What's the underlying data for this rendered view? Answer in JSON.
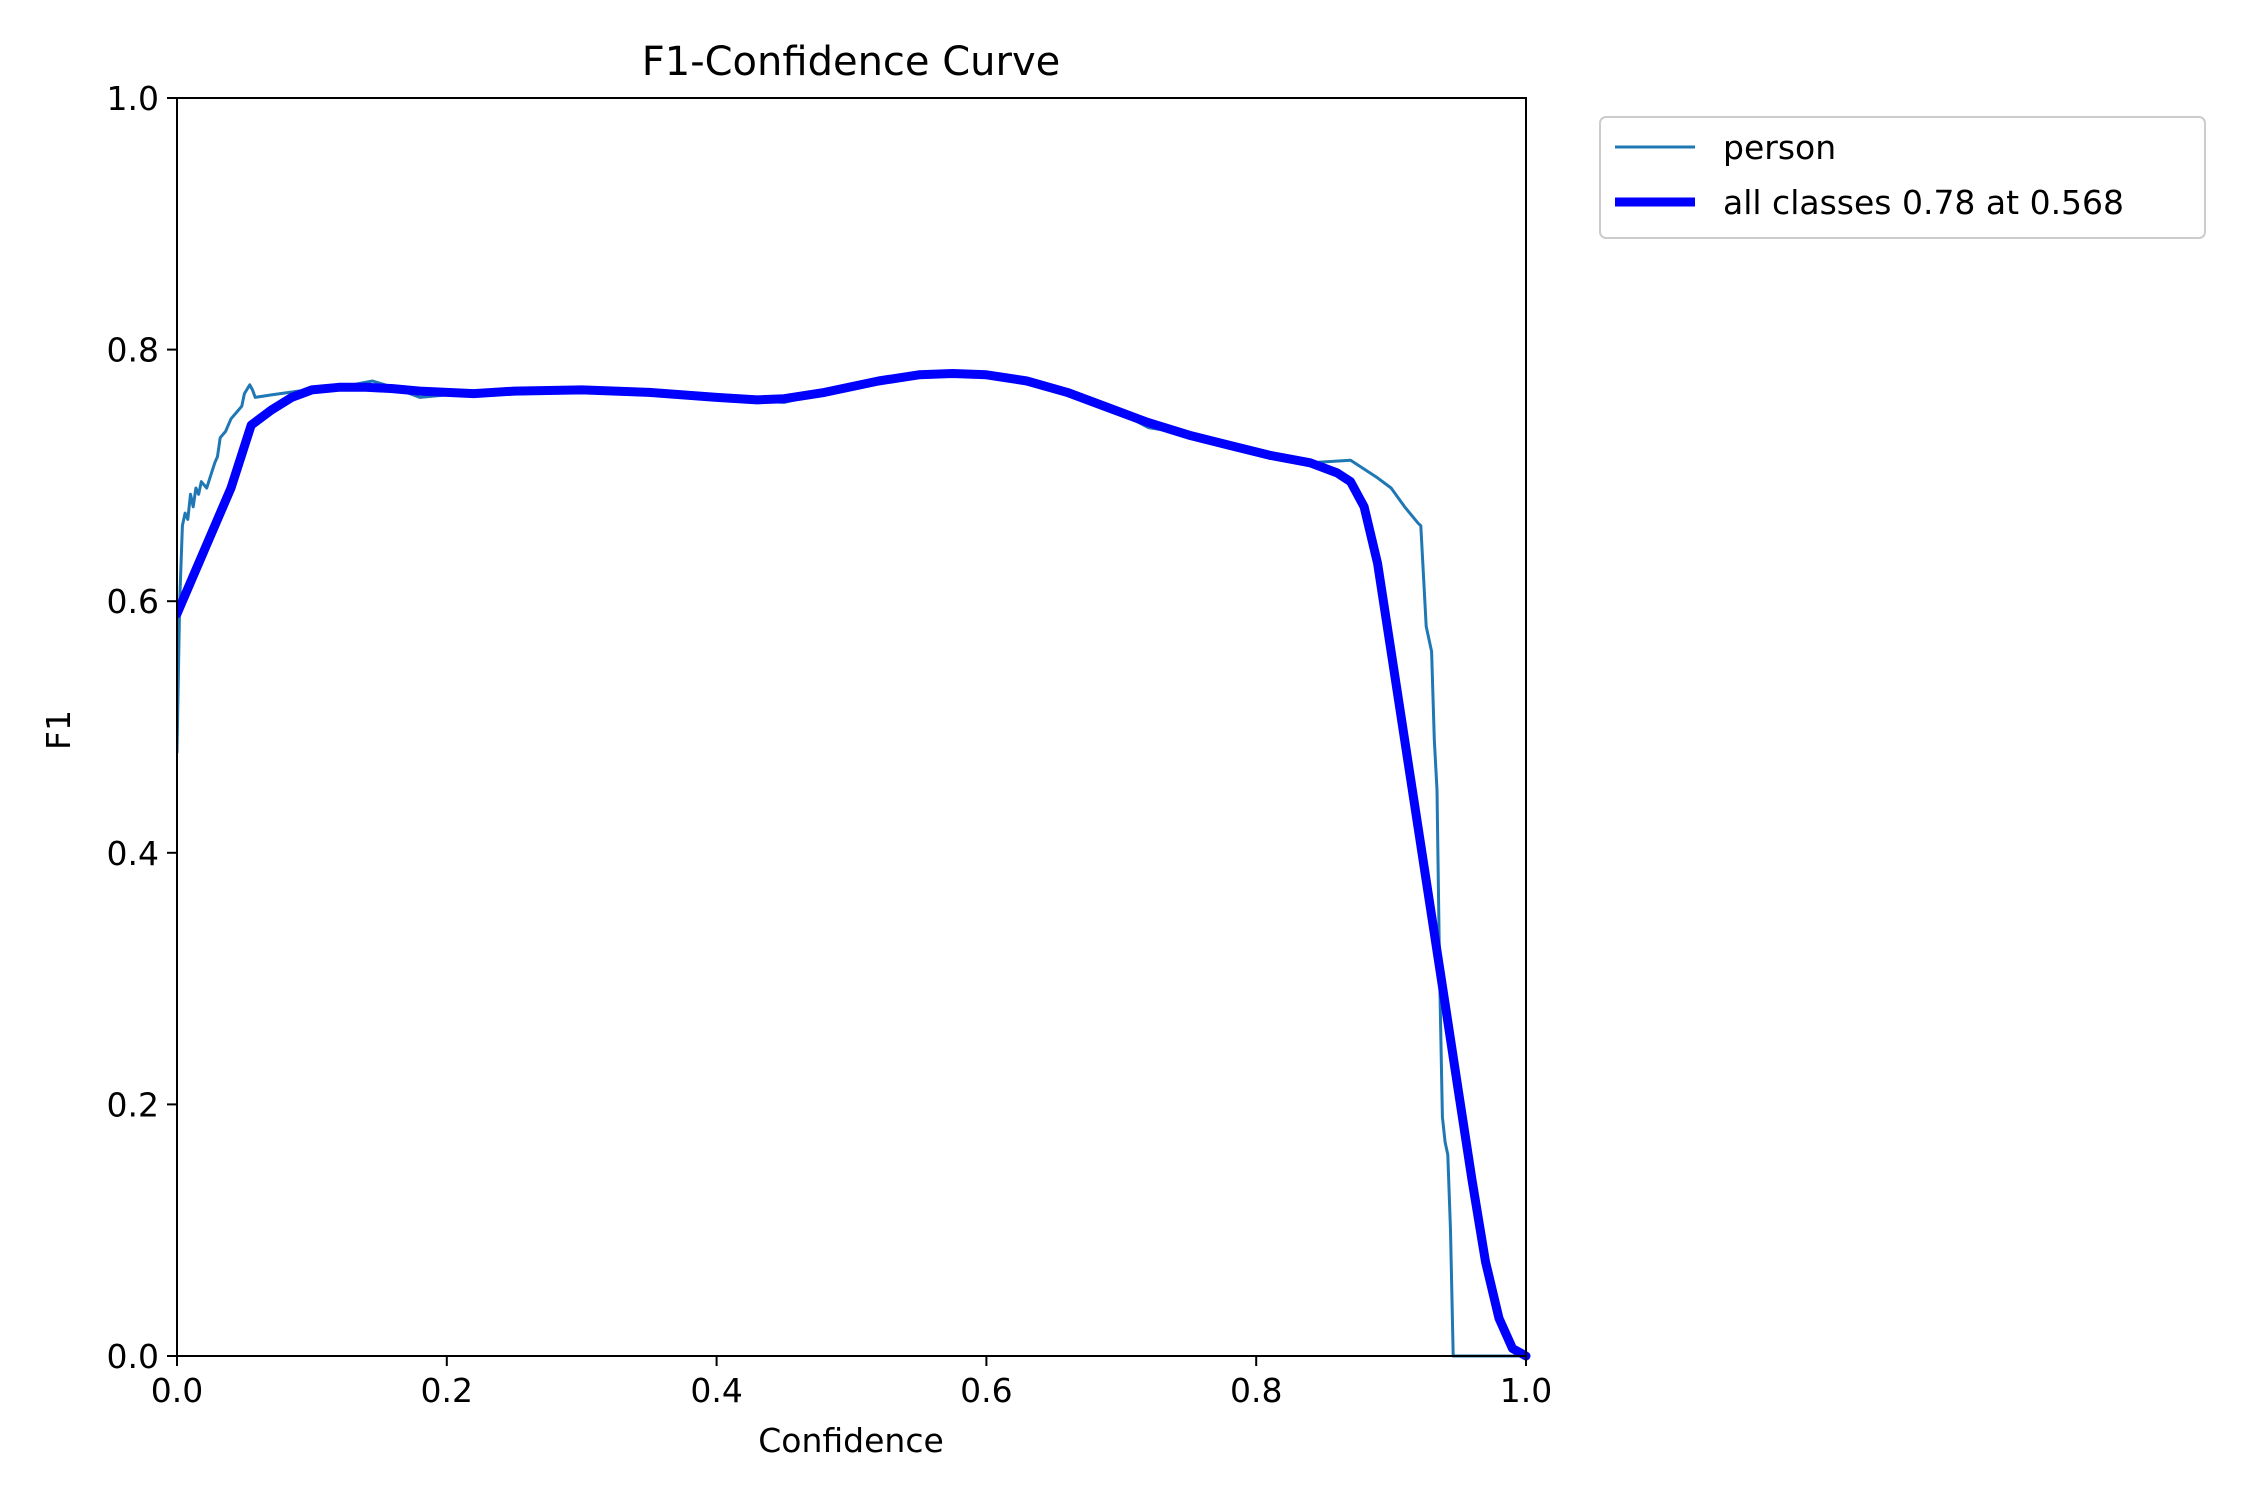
{
  "chart_data": {
    "type": "line",
    "title": "F1-Confidence Curve",
    "xlabel": "Confidence",
    "ylabel": "F1",
    "xlim": [
      0,
      1
    ],
    "ylim": [
      0,
      1
    ],
    "x_ticks": [
      "0.0",
      "0.2",
      "0.4",
      "0.6",
      "0.8",
      "1.0"
    ],
    "y_ticks": [
      "0.0",
      "0.2",
      "0.4",
      "0.6",
      "0.8",
      "1.0"
    ],
    "grid": false,
    "legend_position": "outside-top-right",
    "series": [
      {
        "name": "person",
        "color": "#1f77b4",
        "style": "thin",
        "points": [
          [
            0.0,
            0.48
          ],
          [
            0.002,
            0.6
          ],
          [
            0.004,
            0.66
          ],
          [
            0.006,
            0.67
          ],
          [
            0.008,
            0.665
          ],
          [
            0.01,
            0.685
          ],
          [
            0.012,
            0.675
          ],
          [
            0.014,
            0.69
          ],
          [
            0.016,
            0.685
          ],
          [
            0.018,
            0.695
          ],
          [
            0.022,
            0.69
          ],
          [
            0.025,
            0.7
          ],
          [
            0.028,
            0.71
          ],
          [
            0.03,
            0.715
          ],
          [
            0.032,
            0.73
          ],
          [
            0.036,
            0.735
          ],
          [
            0.04,
            0.745
          ],
          [
            0.044,
            0.75
          ],
          [
            0.048,
            0.755
          ],
          [
            0.05,
            0.765
          ],
          [
            0.054,
            0.772
          ],
          [
            0.056,
            0.768
          ],
          [
            0.058,
            0.762
          ],
          [
            0.07,
            0.764
          ],
          [
            0.09,
            0.767
          ],
          [
            0.11,
            0.769
          ],
          [
            0.13,
            0.772
          ],
          [
            0.145,
            0.775
          ],
          [
            0.16,
            0.77
          ],
          [
            0.18,
            0.762
          ],
          [
            0.2,
            0.764
          ],
          [
            0.25,
            0.767
          ],
          [
            0.3,
            0.768
          ],
          [
            0.35,
            0.765
          ],
          [
            0.4,
            0.761
          ],
          [
            0.45,
            0.758
          ],
          [
            0.47,
            0.763
          ],
          [
            0.5,
            0.772
          ],
          [
            0.54,
            0.779
          ],
          [
            0.575,
            0.782
          ],
          [
            0.61,
            0.778
          ],
          [
            0.65,
            0.77
          ],
          [
            0.69,
            0.755
          ],
          [
            0.72,
            0.738
          ],
          [
            0.75,
            0.733
          ],
          [
            0.78,
            0.725
          ],
          [
            0.81,
            0.718
          ],
          [
            0.84,
            0.71
          ],
          [
            0.87,
            0.712
          ],
          [
            0.89,
            0.698
          ],
          [
            0.9,
            0.69
          ],
          [
            0.91,
            0.675
          ],
          [
            0.92,
            0.662
          ],
          [
            0.922,
            0.66
          ],
          [
            0.924,
            0.62
          ],
          [
            0.926,
            0.58
          ],
          [
            0.928,
            0.57
          ],
          [
            0.93,
            0.56
          ],
          [
            0.932,
            0.49
          ],
          [
            0.934,
            0.45
          ],
          [
            0.936,
            0.3
          ],
          [
            0.938,
            0.19
          ],
          [
            0.94,
            0.17
          ],
          [
            0.942,
            0.16
          ],
          [
            0.944,
            0.1
          ],
          [
            0.946,
            0.0
          ],
          [
            1.0,
            0.0
          ]
        ]
      },
      {
        "name": "all classes 0.78 at 0.568",
        "color": "#0000ff",
        "style": "thick",
        "points": [
          [
            0.0,
            0.59
          ],
          [
            0.02,
            0.64
          ],
          [
            0.04,
            0.69
          ],
          [
            0.055,
            0.74
          ],
          [
            0.07,
            0.752
          ],
          [
            0.085,
            0.762
          ],
          [
            0.1,
            0.768
          ],
          [
            0.12,
            0.77
          ],
          [
            0.14,
            0.77
          ],
          [
            0.16,
            0.769
          ],
          [
            0.18,
            0.767
          ],
          [
            0.2,
            0.766
          ],
          [
            0.22,
            0.765
          ],
          [
            0.25,
            0.767
          ],
          [
            0.3,
            0.768
          ],
          [
            0.35,
            0.766
          ],
          [
            0.4,
            0.762
          ],
          [
            0.43,
            0.76
          ],
          [
            0.45,
            0.761
          ],
          [
            0.48,
            0.766
          ],
          [
            0.52,
            0.775
          ],
          [
            0.55,
            0.78
          ],
          [
            0.575,
            0.781
          ],
          [
            0.6,
            0.78
          ],
          [
            0.63,
            0.775
          ],
          [
            0.66,
            0.766
          ],
          [
            0.69,
            0.754
          ],
          [
            0.72,
            0.742
          ],
          [
            0.75,
            0.732
          ],
          [
            0.78,
            0.724
          ],
          [
            0.81,
            0.716
          ],
          [
            0.84,
            0.71
          ],
          [
            0.86,
            0.702
          ],
          [
            0.87,
            0.695
          ],
          [
            0.88,
            0.675
          ],
          [
            0.89,
            0.63
          ],
          [
            0.9,
            0.56
          ],
          [
            0.91,
            0.49
          ],
          [
            0.92,
            0.42
          ],
          [
            0.93,
            0.35
          ],
          [
            0.94,
            0.28
          ],
          [
            0.95,
            0.21
          ],
          [
            0.96,
            0.14
          ],
          [
            0.97,
            0.075
          ],
          [
            0.98,
            0.03
          ],
          [
            0.99,
            0.006
          ],
          [
            1.0,
            0.0
          ]
        ]
      }
    ]
  }
}
